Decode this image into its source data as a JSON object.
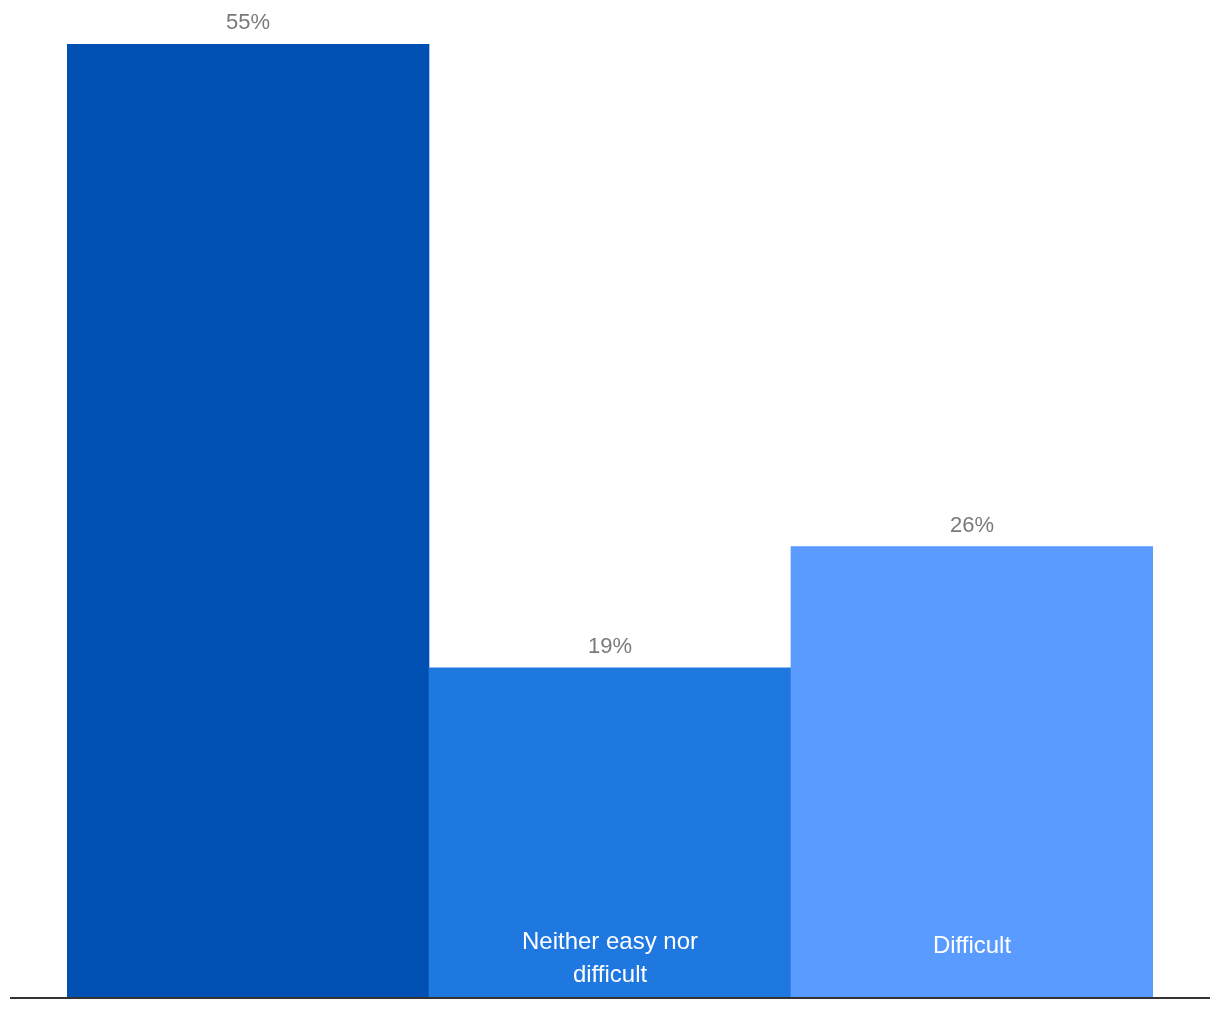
{
  "chart_data": {
    "type": "bar",
    "categories": [
      null,
      "Neither easy nor difficult",
      "Difficult"
    ],
    "values": [
      55,
      19,
      26
    ],
    "value_labels": [
      "55%",
      "19%",
      "26%"
    ],
    "colors": [
      "#0050b3",
      "#1f77e0",
      "#5a9bff"
    ]
  }
}
